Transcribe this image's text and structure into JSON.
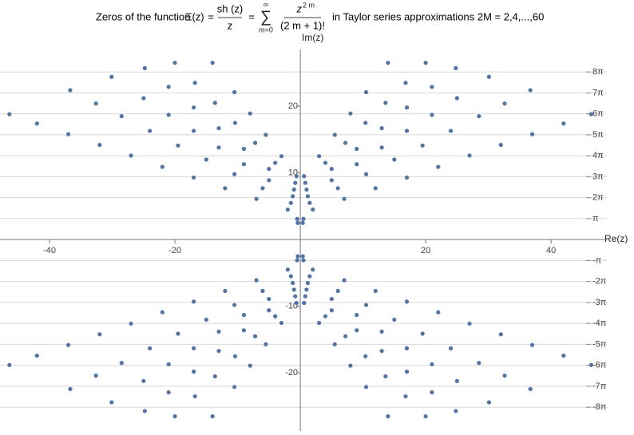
{
  "chart_data": {
    "type": "scatter",
    "title_parts": {
      "prefix": "Zeros of the function",
      "lhs": "Ξ(z)",
      "eq1": "=",
      "frac_num": "sh (z)",
      "frac_den": "z",
      "eq2": "=",
      "sum": "∑",
      "sum_upper": "∞",
      "sum_lower": "m=0",
      "term_base": "z",
      "term_exp": "2 m",
      "term_den": "(2 m + 1)!",
      "suffix": "in Taylor series approximations  2M = 2,4,...,60"
    },
    "x_label": "Re(z)",
    "y_label": "Im(z)",
    "xlim": [
      -47.9,
      48.9
    ],
    "ylim": [
      -28.7,
      28.5
    ],
    "xticks": [
      -40,
      -20,
      20,
      40
    ],
    "yticks": [
      -20,
      -10,
      10,
      20
    ],
    "y2lim": [
      -28.7,
      28.5
    ],
    "y2ticks": [
      {
        "value": -25.1327,
        "label": "-8π"
      },
      {
        "value": -21.9911,
        "label": "-7π"
      },
      {
        "value": -18.8496,
        "label": "-6π"
      },
      {
        "value": -15.708,
        "label": "-5π"
      },
      {
        "value": -12.5664,
        "label": "-4π"
      },
      {
        "value": -9.4248,
        "label": "-3π"
      },
      {
        "value": -6.2832,
        "label": "-2π"
      },
      {
        "value": -3.1416,
        "label": "-π"
      },
      {
        "value": 3.1416,
        "label": "π"
      },
      {
        "value": 6.2832,
        "label": "2π"
      },
      {
        "value": 9.4248,
        "label": "3π"
      },
      {
        "value": 12.5664,
        "label": "4π"
      },
      {
        "value": 15.708,
        "label": "5π"
      },
      {
        "value": 18.8496,
        "label": "6π"
      },
      {
        "value": 21.9911,
        "label": "7π"
      },
      {
        "value": 25.1327,
        "label": "8π"
      }
    ],
    "grid": true,
    "series": [
      {
        "color": "#4f74ac",
        "x": [
          2,
          7,
          12,
          17,
          22,
          27,
          32,
          37,
          42,
          46.4,
          1.5,
          6,
          10.5,
          15,
          19.5,
          24,
          28.5,
          32.6,
          36.7,
          1.2,
          5,
          9,
          13,
          17,
          21,
          25,
          30.1,
          1,
          5,
          9,
          13,
          17,
          21,
          24.8,
          0.8,
          4,
          7.2,
          10.4,
          13.6,
          16.8,
          20,
          0.6,
          3,
          5.5,
          8,
          10.5,
          14,
          0.5,
          0.4
        ],
        "values": [
          4.5,
          6.1,
          7.7,
          9.3,
          10.9,
          12.6,
          14.2,
          15.8,
          17.4,
          18.8,
          5.5,
          7.7,
          9.8,
          12.0,
          14.1,
          16.3,
          18.5,
          20.4,
          22.4,
          6.5,
          8.9,
          11.3,
          13.8,
          16.3,
          18.7,
          21.2,
          24.4,
          7.5,
          10.6,
          13.6,
          16.7,
          19.8,
          22.9,
          25.7,
          8.5,
          11.5,
          14.5,
          17.5,
          20.5,
          23.5,
          26.5,
          9.5,
          12.5,
          15.7,
          18.9,
          22.1,
          26.5,
          3.1,
          2.5
        ]
      },
      {
        "color": "#4f74ac",
        "x": [
          -2,
          -7,
          -12,
          -17,
          -22,
          -27,
          -32,
          -37,
          -42,
          -46.4,
          -1.5,
          -6,
          -10.5,
          -15,
          -19.5,
          -24,
          -28.5,
          -32.6,
          -36.7,
          -1.2,
          -5,
          -9,
          -13,
          -17,
          -21,
          -25,
          -30.1,
          -1,
          -5,
          -9,
          -13,
          -17,
          -21,
          -24.8,
          -0.8,
          -4,
          -7.2,
          -10.4,
          -13.6,
          -16.8,
          -20,
          -0.6,
          -3,
          -5.5,
          -8,
          -10.5,
          -14,
          -0.5,
          -0.4
        ],
        "values": [
          4.5,
          6.1,
          7.7,
          9.3,
          10.9,
          12.6,
          14.2,
          15.8,
          17.4,
          18.8,
          5.5,
          7.7,
          9.8,
          12.0,
          14.1,
          16.3,
          18.5,
          20.4,
          22.4,
          6.5,
          8.9,
          11.3,
          13.8,
          16.3,
          18.7,
          21.2,
          24.4,
          7.5,
          10.6,
          13.6,
          16.7,
          19.8,
          22.9,
          25.7,
          8.5,
          11.5,
          14.5,
          17.5,
          20.5,
          23.5,
          26.5,
          9.5,
          12.5,
          15.7,
          18.9,
          22.1,
          26.5,
          3.1,
          2.5
        ]
      },
      {
        "color": "#4f74ac",
        "x": [
          2,
          7,
          12,
          17,
          22,
          27,
          32,
          37,
          42,
          46.4,
          1.5,
          6,
          10.5,
          15,
          19.5,
          24,
          28.5,
          32.6,
          36.7,
          1.2,
          5,
          9,
          13,
          17,
          21,
          25,
          30.1,
          1,
          5,
          9,
          13,
          17,
          21,
          24.8,
          0.8,
          4,
          7.2,
          10.4,
          13.6,
          16.8,
          20,
          0.6,
          3,
          5.5,
          8,
          10.5,
          14,
          0.5,
          0.4
        ],
        "values": [
          -4.5,
          -6.1,
          -7.7,
          -9.3,
          -10.9,
          -12.6,
          -14.2,
          -15.8,
          -17.4,
          -18.8,
          -5.5,
          -7.7,
          -9.8,
          -12.0,
          -14.1,
          -16.3,
          -18.5,
          -20.4,
          -22.4,
          -6.5,
          -8.9,
          -11.3,
          -13.8,
          -16.3,
          -18.7,
          -21.2,
          -24.4,
          -7.5,
          -10.6,
          -13.6,
          -16.7,
          -19.8,
          -22.9,
          -25.7,
          -8.5,
          -11.5,
          -14.5,
          -17.5,
          -20.5,
          -23.5,
          -26.5,
          -9.5,
          -12.5,
          -15.7,
          -18.9,
          -22.1,
          -26.5,
          -3.1,
          -2.5
        ]
      },
      {
        "color": "#4f74ac",
        "x": [
          -2,
          -7,
          -12,
          -17,
          -22,
          -27,
          -32,
          -37,
          -42,
          -46.4,
          -1.5,
          -6,
          -10.5,
          -15,
          -19.5,
          -24,
          -28.5,
          -32.6,
          -36.7,
          -1.2,
          -5,
          -9,
          -13,
          -17,
          -21,
          -25,
          -30.1,
          -1,
          -5,
          -9,
          -13,
          -17,
          -21,
          -24.8,
          -0.8,
          -4,
          -7.2,
          -10.4,
          -13.6,
          -16.8,
          -20,
          -0.6,
          -3,
          -5.5,
          -8,
          -10.5,
          -14,
          -0.5,
          -0.4
        ],
        "values": [
          -4.5,
          -6.1,
          -7.7,
          -9.3,
          -10.9,
          -12.6,
          -14.2,
          -15.8,
          -17.4,
          -18.8,
          -5.5,
          -7.7,
          -9.8,
          -12.0,
          -14.1,
          -16.3,
          -18.5,
          -20.4,
          -22.4,
          -6.5,
          -8.9,
          -11.3,
          -13.8,
          -16.3,
          -18.7,
          -21.2,
          -24.4,
          -7.5,
          -10.6,
          -13.6,
          -16.7,
          -19.8,
          -22.9,
          -25.7,
          -8.5,
          -11.5,
          -14.5,
          -17.5,
          -20.5,
          -23.5,
          -26.5,
          -9.5,
          -12.5,
          -15.7,
          -18.9,
          -22.1,
          -26.5,
          -3.1,
          -2.5
        ]
      }
    ]
  }
}
